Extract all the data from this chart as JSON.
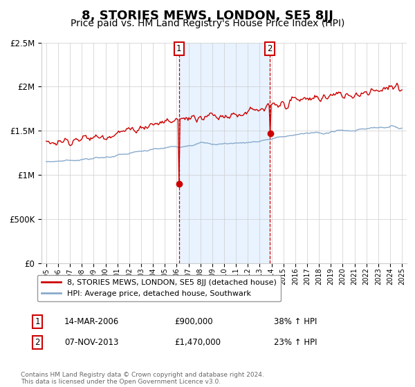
{
  "title": "8, STORIES MEWS, LONDON, SE5 8JJ",
  "subtitle": "Price paid vs. HM Land Registry's House Price Index (HPI)",
  "ylim": [
    0,
    2500000
  ],
  "line1_color": "#cc0000",
  "line2_color": "#88aacc",
  "line1_label": "8, STORIES MEWS, LONDON, SE5 8JJ (detached house)",
  "line2_label": "HPI: Average price, detached house, Southwark",
  "sale1_year": 2006.2,
  "sale1_value": 900000,
  "sale2_year": 2013.85,
  "sale2_value": 1470000,
  "sale1_date": "14-MAR-2006",
  "sale1_price": "£900,000",
  "sale1_pct": "38% ↑ HPI",
  "sale2_date": "07-NOV-2013",
  "sale2_price": "£1,470,000",
  "sale2_pct": "23% ↑ HPI",
  "footnote": "Contains HM Land Registry data © Crown copyright and database right 2024.\nThis data is licensed under the Open Government Licence v3.0.",
  "background_color": "#ffffff",
  "grid_color": "#cccccc",
  "shading_color": "#ddeeff",
  "title_fontsize": 13,
  "subtitle_fontsize": 10
}
